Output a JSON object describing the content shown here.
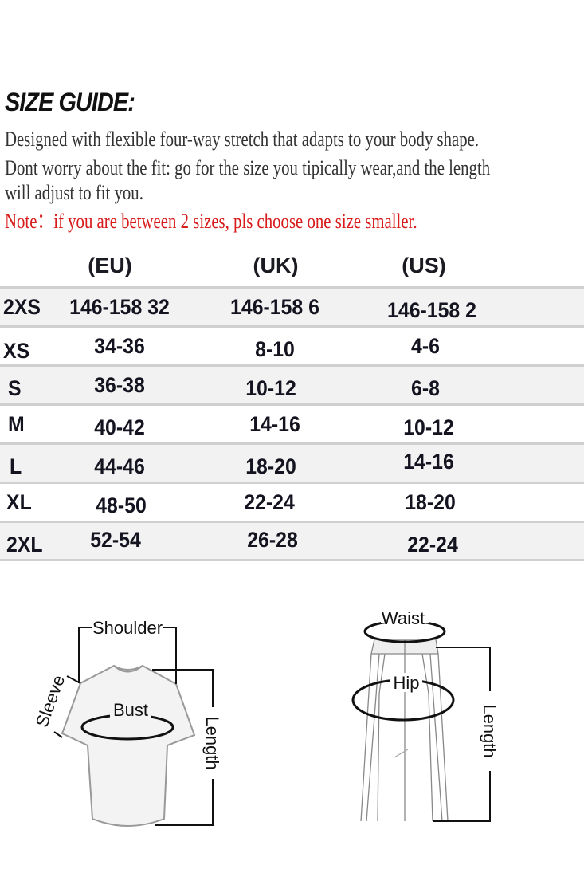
{
  "title": "SIZE GUIDE:",
  "description": [
    "Designed with flexible four-way stretch that adapts to your body shape.",
    "Dont worry about the fit: go for the size you tipically wear,and the length",
    "will adjust to fit you."
  ],
  "note": "Note：if you are between 2 sizes, pls choose one size smaller.",
  "note_color": "#d91a1a",
  "table": {
    "headers": [
      "(EU)",
      "(UK)",
      "(US)"
    ],
    "rows": [
      [
        "2XS",
        "146-158 32",
        "146-158 6",
        "146-158 2"
      ],
      [
        "XS",
        "34-36",
        "8-10",
        "4-6"
      ],
      [
        "S",
        "36-38",
        "10-12",
        "6-8"
      ],
      [
        "M",
        "40-42",
        "14-16",
        "10-12"
      ],
      [
        "L",
        "44-46",
        "18-20",
        "14-16"
      ],
      [
        "XL",
        "48-50",
        "22-24",
        "18-20"
      ],
      [
        "2XL",
        "52-54",
        "26-28",
        "22-24"
      ]
    ]
  },
  "diagrams": {
    "top": {
      "shoulder": "Shoulder",
      "sleeve": "Sleeve",
      "bust": "Bust",
      "length": "Length"
    },
    "pants": {
      "waist": "Waist",
      "hip": "Hip",
      "length": "Length"
    }
  }
}
